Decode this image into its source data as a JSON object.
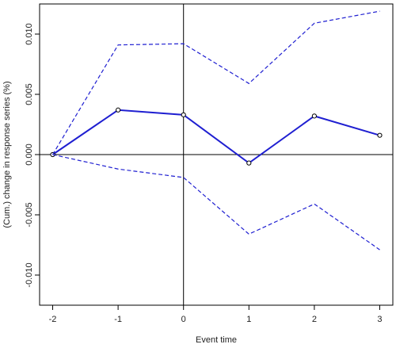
{
  "chart_data": {
    "type": "line",
    "xlabel": "Event time",
    "ylabel": "(Cum.) change in response series (%)",
    "x": [
      -2,
      -1,
      0,
      1,
      2,
      3
    ],
    "xlim": [
      -2.2,
      3.2
    ],
    "ylim": [
      -0.0125,
      0.0125
    ],
    "xticks": [
      -2,
      -1,
      0,
      1,
      2,
      3
    ],
    "yticks": [
      -0.01,
      -0.005,
      0.0,
      0.005,
      0.01
    ],
    "xtick_labels": [
      "-2",
      "-1",
      "0",
      "1",
      "2",
      "3"
    ],
    "ytick_labels": [
      "-0.010",
      "-0.005",
      "0.000",
      "0.005",
      "0.010"
    ],
    "reference_lines": {
      "vertical_x": 0,
      "horizontal_y": 0
    },
    "series": [
      {
        "values": [
          0.0,
          0.0037,
          0.0033,
          -0.0007,
          0.0032,
          0.0016
        ],
        "style": "solid",
        "markers": true
      },
      {
        "values": [
          0.0,
          0.0091,
          0.0092,
          0.0059,
          0.0109,
          0.0119
        ],
        "style": "dashed",
        "markers": false
      },
      {
        "values": [
          0.0,
          -0.0012,
          -0.0019,
          -0.0066,
          -0.0041,
          -0.0079
        ],
        "style": "dashed",
        "markers": false
      }
    ],
    "colors": {
      "line": "#1f1fd1",
      "axis": "#000000",
      "marker_fill": "#ffffff"
    }
  }
}
